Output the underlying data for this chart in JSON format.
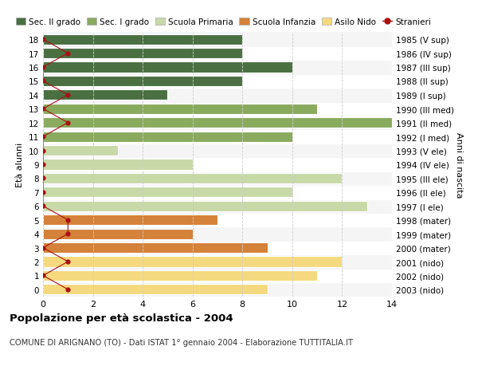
{
  "ages": [
    0,
    1,
    2,
    3,
    4,
    5,
    6,
    7,
    8,
    9,
    10,
    11,
    12,
    13,
    14,
    15,
    16,
    17,
    18
  ],
  "right_labels": [
    "2003 (nido)",
    "2002 (nido)",
    "2001 (nido)",
    "2000 (mater)",
    "1999 (mater)",
    "1998 (mater)",
    "1997 (I ele)",
    "1996 (II ele)",
    "1995 (III ele)",
    "1994 (IV ele)",
    "1993 (V ele)",
    "1992 (I med)",
    "1991 (II med)",
    "1990 (III med)",
    "1989 (I sup)",
    "1988 (II sup)",
    "1987 (III sup)",
    "1986 (IV sup)",
    "1985 (V sup)"
  ],
  "bar_values": [
    9,
    11,
    12,
    9,
    6,
    7,
    13,
    10,
    12,
    6,
    3,
    10,
    14,
    11,
    5,
    8,
    10,
    8,
    8
  ],
  "bar_colors": [
    "#f5d97e",
    "#f5d97e",
    "#f5d97e",
    "#d4813a",
    "#d4813a",
    "#d4813a",
    "#c8d9a8",
    "#c8d9a8",
    "#c8d9a8",
    "#c8d9a8",
    "#c8d9a8",
    "#8aaa5e",
    "#8aaa5e",
    "#8aaa5e",
    "#4a7042",
    "#4a7042",
    "#4a7042",
    "#4a7042",
    "#4a7042"
  ],
  "stranieri_values": [
    1,
    0,
    1,
    0,
    1,
    1,
    0,
    0,
    0,
    0,
    0,
    0,
    1,
    0,
    1,
    0,
    0,
    1,
    0
  ],
  "title": "Popolazione per età scolastica - 2004",
  "subtitle": "COMUNE DI ARIGNANO (TO) - Dati ISTAT 1° gennaio 2004 - Elaborazione TUTTITALIA.IT",
  "ylabel_left": "Età alunni",
  "ylabel_right": "Anni di nascita",
  "xlim": [
    0,
    14
  ],
  "legend_items": [
    {
      "label": "Sec. II grado",
      "color": "#4a7042"
    },
    {
      "label": "Sec. I grado",
      "color": "#8aaa5e"
    },
    {
      "label": "Scuola Primaria",
      "color": "#c8d9a8"
    },
    {
      "label": "Scuola Infanzia",
      "color": "#d4813a"
    },
    {
      "label": "Asilo Nido",
      "color": "#f5d97e"
    },
    {
      "label": "Stranieri",
      "color": "#aa1111"
    }
  ],
  "bg_color": "#ffffff",
  "grid_color": "#cccccc",
  "bar_edge_color": "#ffffff",
  "row_bg_even": "#f0f0f0",
  "row_bg_odd": "#ffffff"
}
